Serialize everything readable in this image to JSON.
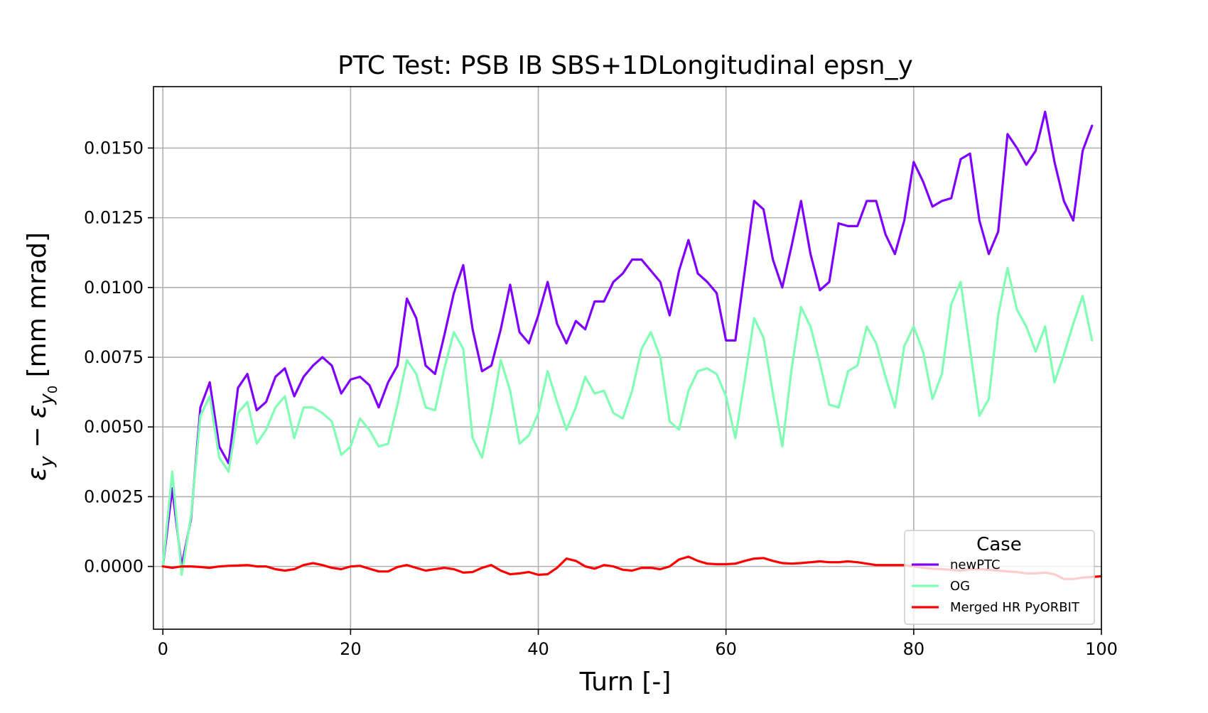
{
  "chart_data": {
    "type": "line",
    "title": "PTC Test: PSB IB SBS+1DLongitudinal epsn_y",
    "xlabel": "Turn [-]",
    "ylabel_parts": {
      "eps": "ε",
      "sub1": "y",
      "minus": " − ",
      "sub2": "y",
      "sub3": "0",
      "unit": " [mm mrad]"
    },
    "xlim": [
      -1,
      100
    ],
    "ylim": [
      -0.00225,
      0.0172
    ],
    "x_ticks": [
      0,
      20,
      40,
      60,
      80,
      100
    ],
    "x_tick_labels": [
      "0",
      "20",
      "40",
      "60",
      "80",
      "100"
    ],
    "y_ticks": [
      0.0,
      0.0025,
      0.005,
      0.0075,
      0.01,
      0.0125,
      0.015
    ],
    "y_tick_labels": [
      "0.0000",
      "0.0025",
      "0.0050",
      "0.0075",
      "0.0100",
      "0.0125",
      "0.0150"
    ],
    "grid": true,
    "legend": {
      "title": "Case",
      "placement": "lower-right"
    },
    "series": [
      {
        "name": "newPTC",
        "color": "#8000ff",
        "x": [
          0,
          1,
          2,
          3,
          4,
          5,
          6,
          7,
          8,
          9,
          10,
          11,
          12,
          13,
          14,
          15,
          16,
          17,
          18,
          19,
          20,
          21,
          22,
          23,
          24,
          25,
          26,
          27,
          28,
          29,
          30,
          31,
          32,
          33,
          34,
          35,
          36,
          37,
          38,
          39,
          40,
          41,
          42,
          43,
          44,
          45,
          46,
          47,
          48,
          49,
          50,
          51,
          52,
          53,
          54,
          55,
          56,
          57,
          58,
          59,
          60,
          61,
          62,
          63,
          64,
          65,
          66,
          67,
          68,
          69,
          70,
          71,
          72,
          73,
          74,
          75,
          76,
          77,
          78,
          79,
          80,
          81,
          82,
          83,
          84,
          85,
          86,
          87,
          88,
          89,
          90,
          91,
          92,
          93,
          94,
          95,
          96,
          97,
          98,
          99
        ],
        "values": [
          0.0,
          0.0028,
          0.0,
          0.0017,
          0.0057,
          0.0066,
          0.0043,
          0.0037,
          0.0064,
          0.0069,
          0.0056,
          0.0059,
          0.0068,
          0.0071,
          0.0061,
          0.0068,
          0.0072,
          0.0075,
          0.0072,
          0.0062,
          0.0067,
          0.0068,
          0.0065,
          0.0057,
          0.0066,
          0.0072,
          0.0096,
          0.0089,
          0.0072,
          0.0069,
          0.0083,
          0.0098,
          0.0108,
          0.0085,
          0.007,
          0.0072,
          0.0085,
          0.0101,
          0.0084,
          0.008,
          0.009,
          0.0102,
          0.0087,
          0.008,
          0.0088,
          0.0085,
          0.0095,
          0.0095,
          0.0102,
          0.0105,
          0.011,
          0.011,
          0.0106,
          0.0102,
          0.009,
          0.0106,
          0.0117,
          0.0105,
          0.0102,
          0.0098,
          0.0081,
          0.0081,
          0.0106,
          0.0131,
          0.0128,
          0.011,
          0.01,
          0.0115,
          0.0131,
          0.0112,
          0.0099,
          0.0102,
          0.0123,
          0.0122,
          0.0122,
          0.0131,
          0.0131,
          0.0119,
          0.0112,
          0.0124,
          0.0145,
          0.0138,
          0.0129,
          0.0131,
          0.0132,
          0.0146,
          0.0148,
          0.0124,
          0.0112,
          0.012,
          0.0155,
          0.015,
          0.0144,
          0.0149,
          0.0163,
          0.0145,
          0.0131,
          0.0124,
          0.0149,
          0.0158
        ]
      },
      {
        "name": "OG",
        "color": "#80ffb4",
        "x": [
          0,
          1,
          2,
          3,
          4,
          5,
          6,
          7,
          8,
          9,
          10,
          11,
          12,
          13,
          14,
          15,
          16,
          17,
          18,
          19,
          20,
          21,
          22,
          23,
          24,
          25,
          26,
          27,
          28,
          29,
          30,
          31,
          32,
          33,
          34,
          35,
          36,
          37,
          38,
          39,
          40,
          41,
          42,
          43,
          44,
          45,
          46,
          47,
          48,
          49,
          50,
          51,
          52,
          53,
          54,
          55,
          56,
          57,
          58,
          59,
          60,
          61,
          62,
          63,
          64,
          65,
          66,
          67,
          68,
          69,
          70,
          71,
          72,
          73,
          74,
          75,
          76,
          77,
          78,
          79,
          80,
          81,
          82,
          83,
          84,
          85,
          86,
          87,
          88,
          89,
          90,
          91,
          92,
          93,
          94,
          95,
          96,
          97,
          98,
          99
        ],
        "values": [
          0.0,
          0.0034,
          -0.0003,
          0.0018,
          0.0054,
          0.0061,
          0.0039,
          0.0034,
          0.0055,
          0.0059,
          0.0044,
          0.0049,
          0.0057,
          0.0061,
          0.0046,
          0.0057,
          0.0057,
          0.0055,
          0.0052,
          0.004,
          0.0043,
          0.0053,
          0.0049,
          0.0043,
          0.0044,
          0.0058,
          0.0074,
          0.0069,
          0.0057,
          0.0056,
          0.0071,
          0.0084,
          0.0078,
          0.0046,
          0.0039,
          0.0055,
          0.0074,
          0.0063,
          0.0044,
          0.0047,
          0.0055,
          0.007,
          0.0059,
          0.0049,
          0.0057,
          0.0068,
          0.0062,
          0.0063,
          0.0055,
          0.0053,
          0.0063,
          0.0078,
          0.0084,
          0.0075,
          0.0052,
          0.0049,
          0.0063,
          0.007,
          0.0071,
          0.0069,
          0.0061,
          0.0046,
          0.0067,
          0.0089,
          0.0082,
          0.0062,
          0.0043,
          0.0071,
          0.0093,
          0.0086,
          0.0073,
          0.0058,
          0.0057,
          0.007,
          0.0072,
          0.0086,
          0.008,
          0.0068,
          0.0057,
          0.0079,
          0.0086,
          0.0077,
          0.006,
          0.0069,
          0.0094,
          0.0102,
          0.0078,
          0.0054,
          0.006,
          0.009,
          0.0107,
          0.0092,
          0.0086,
          0.0077,
          0.0086,
          0.0066,
          0.0076,
          0.0087,
          0.0097,
          0.0081
        ]
      },
      {
        "name": "Merged HR PyORBIT",
        "color": "#ff0000",
        "x": [
          0,
          1,
          2,
          3,
          4,
          5,
          6,
          7,
          8,
          9,
          10,
          11,
          12,
          13,
          14,
          15,
          16,
          17,
          18,
          19,
          20,
          21,
          22,
          23,
          24,
          25,
          26,
          27,
          28,
          29,
          30,
          31,
          32,
          33,
          34,
          35,
          36,
          37,
          38,
          39,
          40,
          41,
          42,
          43,
          44,
          45,
          46,
          47,
          48,
          49,
          50,
          51,
          52,
          53,
          54,
          55,
          56,
          57,
          58,
          59,
          60,
          61,
          62,
          63,
          64,
          65,
          66,
          67,
          68,
          69,
          70,
          71,
          72,
          73,
          74,
          75,
          76,
          77,
          78,
          79,
          80,
          81,
          82,
          83,
          84,
          85,
          86,
          87,
          88,
          89,
          90,
          91,
          92,
          93,
          94,
          95,
          96,
          97,
          98,
          99,
          100
        ],
        "values": [
          0.0,
          -5e-05,
          0.0,
          0.0,
          -2e-05,
          -5e-05,
          0.0,
          2e-05,
          3e-05,
          5e-05,
          0.0,
          0.0,
          -0.0001,
          -0.00015,
          -0.0001,
          5e-05,
          0.00012,
          5e-05,
          -5e-05,
          -0.0001,
          0.0,
          2e-05,
          -8e-05,
          -0.00018,
          -0.00018,
          -2e-05,
          5e-05,
          -5e-05,
          -0.00015,
          -0.0001,
          -5e-05,
          -0.0001,
          -0.00022,
          -0.0002,
          -5e-05,
          5e-05,
          -0.00015,
          -0.00028,
          -0.00025,
          -0.0002,
          -0.0003,
          -0.00028,
          -5e-05,
          0.00028,
          0.0002,
          0.0,
          -8e-05,
          5e-05,
          0.0,
          -0.00012,
          -0.00015,
          -5e-05,
          -5e-05,
          -0.0001,
          0.0,
          0.00025,
          0.00035,
          0.0002,
          0.0001,
          8e-05,
          8e-05,
          0.0001,
          0.0002,
          0.00028,
          0.0003,
          0.0002,
          0.00012,
          0.0001,
          0.00012,
          0.00015,
          0.00018,
          0.00015,
          0.00015,
          0.00018,
          0.00015,
          0.0001,
          5e-05,
          5e-05,
          5e-05,
          5e-05,
          0.0,
          -5e-05,
          -8e-05,
          -0.0001,
          -0.00012,
          -0.00015,
          -0.0001,
          -0.0001,
          -0.00012,
          -0.00015,
          -0.00018,
          -0.0002,
          -0.00025,
          -0.00025,
          -0.00022,
          -0.00028,
          -0.00045,
          -0.00045,
          -0.0004,
          -0.00038,
          -0.00035
        ]
      }
    ]
  }
}
